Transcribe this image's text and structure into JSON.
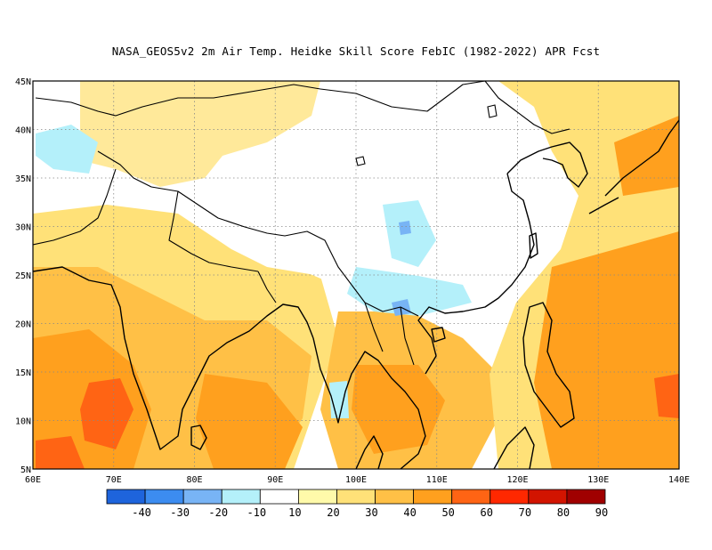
{
  "title": "NASA_GEOS5v2  2m Air Temp. Heidke Skill Score FebIC (1982-2022) APR Fcst",
  "map": {
    "lon_ticks": [
      "60E",
      "70E",
      "80E",
      "90E",
      "100E",
      "110E",
      "120E",
      "130E",
      "140E"
    ],
    "lat_ticks": [
      "45N",
      "40N",
      "35N",
      "30N",
      "25N",
      "20N",
      "15N",
      "10N",
      "5N"
    ],
    "lon_range": [
      60,
      140
    ],
    "lat_range": [
      5,
      45
    ]
  },
  "colorbar": {
    "colors": [
      "#1e64dc",
      "#3c8cf0",
      "#78b4f5",
      "#b4f0fa",
      "#ffffff",
      "#fffaaa",
      "#ffe178",
      "#ffc046",
      "#ffa01e",
      "#ff6414",
      "#ff2800",
      "#d21400",
      "#a00000"
    ],
    "labels": [
      "-40",
      "-30",
      "-20",
      "-10",
      "10",
      "20",
      "30",
      "40",
      "50",
      "60",
      "70",
      "80",
      "90"
    ]
  },
  "regions": {
    "south_asia_west": "#ffe178",
    "south_asia_core": "#ffc046",
    "india_coast_hot": "#ffa01e",
    "india_hotspot": "#ff6414",
    "indochina": "#ffc046",
    "indochina_core": "#ffa01e",
    "pacific_east": "#ffe178",
    "pacific_hot": "#ffa01e",
    "pacific_hotspot": "#ff6414",
    "central_asia": "#ffe178",
    "tibet_china": "#ffffff",
    "cool_patch": "#b4f0fa",
    "cool_core": "#78b4f5"
  }
}
